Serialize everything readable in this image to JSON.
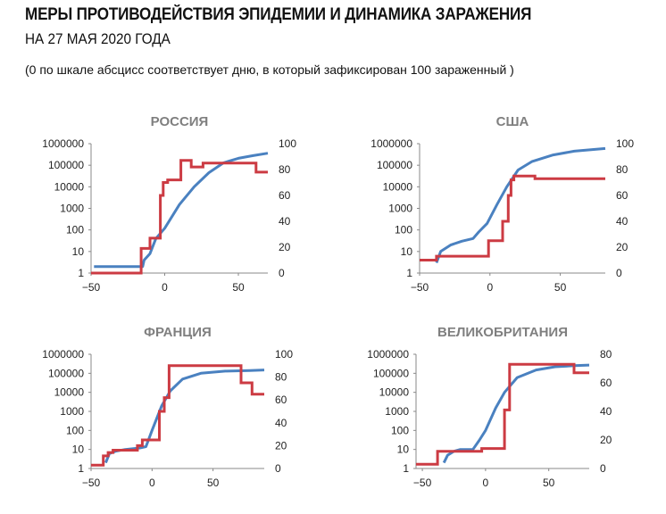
{
  "header": {
    "title": "МЕРЫ ПРОТИВОДЕЙСТВИЯ ЭПИДЕМИИ И ДИНАМИКА ЗАРАЖЕНИЯ",
    "subtitle": "НА 27 МАЯ 2020 ГОДА",
    "note": "(0 по шкале абсцисс соответствует дню, в который зафиксирован 100 зараженный )"
  },
  "colors": {
    "cases": "#4a81c0",
    "stringency": "#cc3b43",
    "axis": "#888888",
    "title": "#7f7f7f"
  },
  "chart_data": [
    {
      "type": "line",
      "title": "РОССИЯ",
      "xlim": [
        -50,
        70
      ],
      "x_ticks": [
        -50,
        0,
        50
      ],
      "y_left": {
        "scale": "log",
        "lim": [
          1,
          1000000
        ],
        "ticks": [
          "1",
          "10",
          "100",
          "1000",
          "10000",
          "100000",
          "1000000"
        ]
      },
      "y_right": {
        "lim": [
          0,
          100
        ],
        "ticks": [
          "0",
          "20",
          "40",
          "60",
          "80",
          "100"
        ]
      },
      "series": [
        {
          "name": "cases",
          "axis": "left",
          "color": "#4a81c0",
          "points": [
            [
              -48,
              2
            ],
            [
              -15,
              2
            ],
            [
              -14,
              4
            ],
            [
              -10,
              8
            ],
            [
              -6,
              40
            ],
            [
              0,
              120
            ],
            [
              10,
              1500
            ],
            [
              20,
              10000
            ],
            [
              30,
              45000
            ],
            [
              40,
              130000
            ],
            [
              50,
              210000
            ],
            [
              60,
              280000
            ],
            [
              70,
              360000
            ]
          ]
        },
        {
          "name": "stringency",
          "axis": "right",
          "color": "#cc3b43",
          "step": true,
          "points": [
            [
              -50,
              0
            ],
            [
              -16,
              0
            ],
            [
              -16,
              19
            ],
            [
              -10,
              19
            ],
            [
              -10,
              27
            ],
            [
              -3,
              27
            ],
            [
              -3,
              60
            ],
            [
              -1,
              60
            ],
            [
              -1,
              70
            ],
            [
              2,
              70
            ],
            [
              2,
              72
            ],
            [
              11,
              72
            ],
            [
              11,
              87
            ],
            [
              18,
              87
            ],
            [
              18,
              82
            ],
            [
              26,
              82
            ],
            [
              26,
              85
            ],
            [
              62,
              85
            ],
            [
              62,
              78
            ],
            [
              70,
              78
            ]
          ]
        }
      ]
    },
    {
      "type": "line",
      "title": "США",
      "xlim": [
        -50,
        82
      ],
      "x_ticks": [
        -50,
        0,
        50
      ],
      "y_left": {
        "scale": "log",
        "lim": [
          1,
          1000000
        ],
        "ticks": [
          "1",
          "10",
          "100",
          "1000",
          "10000",
          "100000",
          "1000000"
        ]
      },
      "y_right": {
        "lim": [
          0,
          100
        ],
        "ticks": [
          "0",
          "20",
          "40",
          "60",
          "80",
          "100"
        ]
      },
      "series": [
        {
          "name": "cases",
          "axis": "left",
          "color": "#4a81c0",
          "points": [
            [
              -38,
              3
            ],
            [
              -35,
              10
            ],
            [
              -28,
              20
            ],
            [
              -20,
              30
            ],
            [
              -12,
              40
            ],
            [
              -8,
              80
            ],
            [
              -2,
              200
            ],
            [
              5,
              1500
            ],
            [
              12,
              10000
            ],
            [
              20,
              60000
            ],
            [
              30,
              150000
            ],
            [
              45,
              300000
            ],
            [
              60,
              450000
            ],
            [
              82,
              600000
            ]
          ]
        },
        {
          "name": "stringency",
          "axis": "right",
          "color": "#cc3b43",
          "step": true,
          "points": [
            [
              -50,
              10
            ],
            [
              -38,
              10
            ],
            [
              -38,
              13
            ],
            [
              -1,
              13
            ],
            [
              -1,
              25
            ],
            [
              9,
              25
            ],
            [
              9,
              40
            ],
            [
              13,
              40
            ],
            [
              13,
              60
            ],
            [
              15,
              60
            ],
            [
              15,
              72
            ],
            [
              17,
              72
            ],
            [
              17,
              75
            ],
            [
              32,
              75
            ],
            [
              32,
              73
            ],
            [
              82,
              73
            ]
          ]
        }
      ]
    },
    {
      "type": "line",
      "title": "ФРАНЦИЯ",
      "xlim": [
        -50,
        92
      ],
      "x_ticks": [
        -50,
        0,
        50
      ],
      "y_left": {
        "scale": "log",
        "lim": [
          1,
          1000000
        ],
        "ticks": [
          "1",
          "10",
          "100",
          "1000",
          "10000",
          "100000",
          "1000000"
        ]
      },
      "y_right": {
        "lim": [
          0,
          100
        ],
        "ticks": [
          "0",
          "20",
          "40",
          "60",
          "80",
          "100"
        ]
      },
      "series": [
        {
          "name": "cases",
          "axis": "left",
          "color": "#4a81c0",
          "points": [
            [
              -38,
              2
            ],
            [
              -35,
              6
            ],
            [
              -30,
              8
            ],
            [
              -22,
              10
            ],
            [
              -10,
              12
            ],
            [
              -5,
              14
            ],
            [
              0,
              100
            ],
            [
              8,
              2000
            ],
            [
              15,
              12000
            ],
            [
              25,
              50000
            ],
            [
              40,
              100000
            ],
            [
              60,
              130000
            ],
            [
              80,
              140000
            ],
            [
              92,
              150000
            ]
          ]
        },
        {
          "name": "stringency",
          "axis": "right",
          "color": "#cc3b43",
          "step": true,
          "points": [
            [
              -50,
              3
            ],
            [
              -40,
              3
            ],
            [
              -40,
              11
            ],
            [
              -36,
              11
            ],
            [
              -36,
              14
            ],
            [
              -32,
              14
            ],
            [
              -32,
              16
            ],
            [
              -12,
              16
            ],
            [
              -12,
              20
            ],
            [
              -8,
              20
            ],
            [
              -8,
              25
            ],
            [
              6,
              25
            ],
            [
              6,
              50
            ],
            [
              10,
              50
            ],
            [
              10,
              62
            ],
            [
              14,
              62
            ],
            [
              14,
              90
            ],
            [
              73,
              90
            ],
            [
              73,
              75
            ],
            [
              82,
              75
            ],
            [
              82,
              65
            ],
            [
              92,
              65
            ]
          ]
        }
      ]
    },
    {
      "type": "line",
      "title": "ВЕЛИКОБРИТАНИЯ",
      "xlim": [
        -55,
        82
      ],
      "x_ticks": [
        -50,
        0,
        50
      ],
      "y_left": {
        "scale": "log",
        "lim": [
          1,
          1000000
        ],
        "ticks": [
          "1",
          "10",
          "100",
          "1000",
          "10000",
          "100000",
          "1000000"
        ]
      },
      "y_right": {
        "lim": [
          0,
          80
        ],
        "ticks": [
          "0",
          "20",
          "40",
          "60",
          "80"
        ]
      },
      "series": [
        {
          "name": "cases",
          "axis": "left",
          "color": "#4a81c0",
          "points": [
            [
              -33,
              2
            ],
            [
              -30,
              5
            ],
            [
              -25,
              8
            ],
            [
              -20,
              10
            ],
            [
              -10,
              10
            ],
            [
              -5,
              30
            ],
            [
              0,
              100
            ],
            [
              8,
              1500
            ],
            [
              15,
              10000
            ],
            [
              25,
              60000
            ],
            [
              40,
              150000
            ],
            [
              55,
              220000
            ],
            [
              70,
              250000
            ],
            [
              82,
              270000
            ]
          ]
        },
        {
          "name": "stringency",
          "axis": "right",
          "color": "#cc3b43",
          "step": true,
          "points": [
            [
              -55,
              3
            ],
            [
              -38,
              3
            ],
            [
              -38,
              12
            ],
            [
              -3,
              12
            ],
            [
              -3,
              14
            ],
            [
              15,
              14
            ],
            [
              15,
              41
            ],
            [
              19,
              41
            ],
            [
              19,
              73
            ],
            [
              70,
              73
            ],
            [
              70,
              67
            ],
            [
              82,
              67
            ]
          ]
        }
      ]
    }
  ]
}
